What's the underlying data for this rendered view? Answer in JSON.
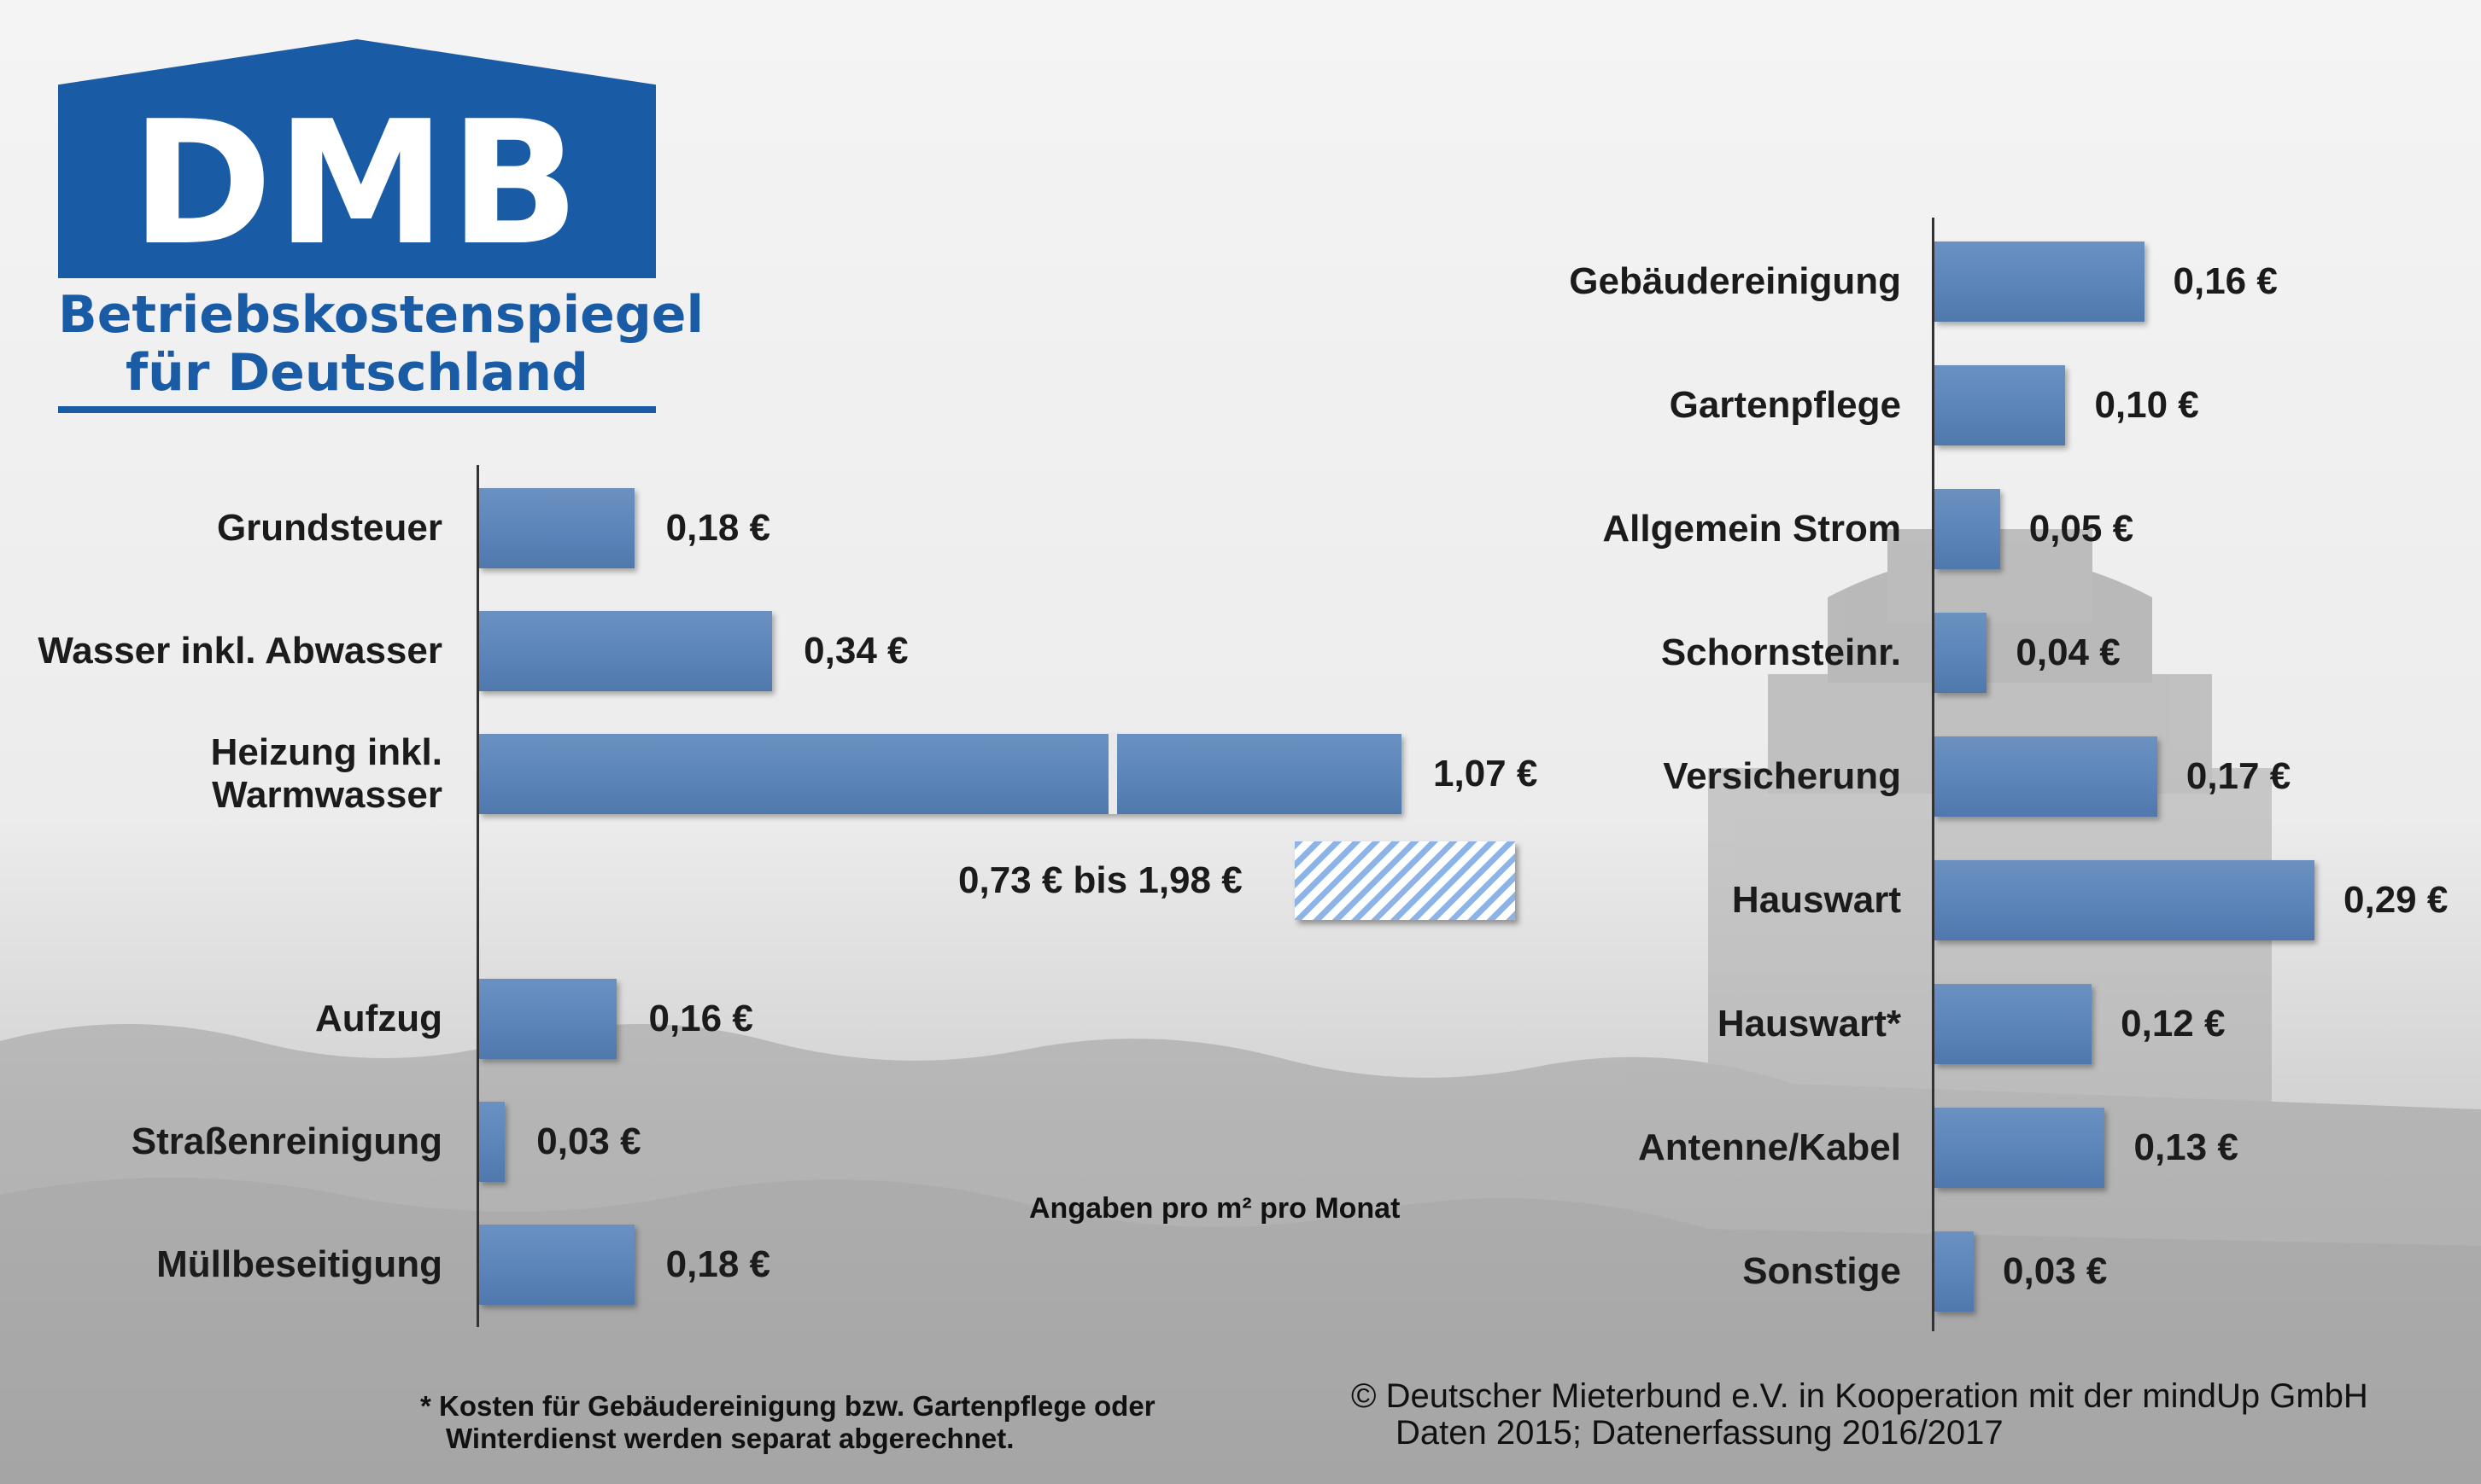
{
  "logo": {
    "mark": "DMB",
    "line1": "Betriebskostenspiegel",
    "line2": "für Deutschland"
  },
  "colors": {
    "bar": "#5a83b8",
    "brand": "#1a5ba6",
    "range_stripe": "#8db4e8"
  },
  "chart_data": [
    {
      "type": "bar",
      "orientation": "horizontal",
      "categories": [
        "Grundsteuer",
        "Wasser inkl. Abwasser",
        "Heizung inkl. Warmwasser",
        "Aufzug",
        "Straßenreinigung",
        "Müllbeseitigung"
      ],
      "category_lines": [
        [
          "Grundsteuer"
        ],
        [
          "Wasser inkl. Abwasser"
        ],
        [
          "Heizung inkl.",
          "Warmwasser"
        ],
        [
          "Aufzug"
        ],
        [
          "Straßenreinigung"
        ],
        [
          "Müllbeseitigung"
        ]
      ],
      "values": [
        0.18,
        0.34,
        1.07,
        0.16,
        0.03,
        0.18
      ],
      "value_labels": [
        "0,18 €",
        "0,34 €",
        "1,07 €",
        "0,16 €",
        "0,03 €",
        "0,18 €"
      ],
      "xlim": [
        0,
        1.07
      ],
      "range": {
        "category": "Heizung inkl. Warmwasser",
        "from": 0.73,
        "to": 1.98,
        "label": "0,73 € bis 1,98 €"
      }
    },
    {
      "type": "bar",
      "orientation": "horizontal",
      "categories": [
        "Gebäudereinigung",
        "Gartenpflege",
        "Allgemein Strom",
        "Schornsteinr.",
        "Versicherung",
        "Hauswart",
        "Hauswart*",
        "Antenne/Kabel",
        "Sonstige"
      ],
      "values": [
        0.16,
        0.1,
        0.05,
        0.04,
        0.17,
        0.29,
        0.12,
        0.13,
        0.03
      ],
      "value_labels": [
        "0,16 €",
        "0,10 €",
        "0,05 €",
        "0,04 €",
        "0,17 €",
        "0,29 €",
        "0,12 €",
        "0,13 €",
        "0,03 €"
      ],
      "xlim": [
        0,
        0.29
      ]
    }
  ],
  "unit_note": "Angaben pro m² pro Monat",
  "footnote": {
    "line1": "* Kosten für Gebäudereinigung bzw. Gartenpflege oder",
    "line2": "Winterdienst werden separat abgerechnet."
  },
  "credit": {
    "line1": "© Deutscher Mieterbund e.V. in Kooperation mit der mindUp GmbH",
    "line2": "Daten 2015; Datenerfassung 2016/2017"
  }
}
